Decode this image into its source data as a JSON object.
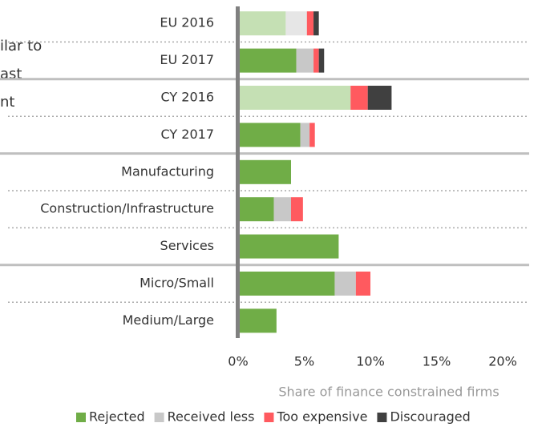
{
  "annotation_lines": [
    "ilar to",
    "ast",
    "nt"
  ],
  "chart_data": {
    "type": "stacked_barh",
    "xlabel": "Share of finance constrained firms",
    "categories": [
      "EU 2016",
      "EU 2017",
      "CY 2016",
      "CY 2017",
      "Manufacturing",
      "Construction/Infrastructure",
      "Services",
      "Micro/Small",
      "Medium/Large"
    ],
    "series": [
      {
        "name": "Rejected",
        "color": "#70ad47",
        "point_colors": [
          "#c5e0b4",
          "#70ad47",
          "#c5e0b4",
          "#70ad47",
          "#70ad47",
          "#70ad47",
          "#70ad47",
          "#70ad47",
          "#70ad47"
        ],
        "values": [
          3.6,
          4.4,
          8.5,
          4.7,
          4.0,
          2.7,
          7.6,
          7.3,
          2.9
        ]
      },
      {
        "name": "Received less",
        "color": "#c8c8c8",
        "point_colors": [
          "#e6e6e6",
          "#c8c8c8",
          "#e6e6e6",
          "#c8c8c8",
          "#c8c8c8",
          "#c8c8c8",
          "#c8c8c8",
          "#c8c8c8",
          "#c8c8c8"
        ],
        "values": [
          1.6,
          1.3,
          0,
          0.7,
          0,
          1.3,
          0,
          1.6,
          0
        ]
      },
      {
        "name": "Too expensive",
        "color": "#ff5a5f",
        "values": [
          0.5,
          0.4,
          1.3,
          0.4,
          0,
          0.9,
          0,
          1.1,
          0
        ]
      },
      {
        "name": "Discouraged",
        "color": "#404040",
        "values": [
          0.4,
          0.4,
          1.8,
          0,
          0,
          0,
          0,
          0,
          0
        ]
      }
    ],
    "group_breaks": [
      2,
      4,
      7
    ],
    "xlim": [
      0,
      20
    ],
    "xticks": [
      {
        "value": 0,
        "label": "0%"
      },
      {
        "value": 5,
        "label": "5%"
      },
      {
        "value": 10,
        "label": "10%"
      },
      {
        "value": 15,
        "label": "15%"
      },
      {
        "value": 20,
        "label": "20%"
      }
    ],
    "legend": "bottom"
  }
}
